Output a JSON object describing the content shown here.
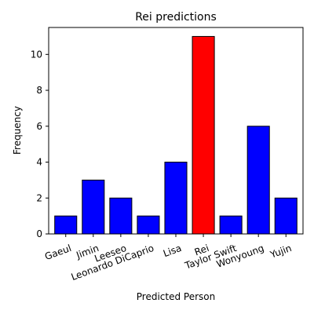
{
  "chart_data": {
    "type": "bar",
    "title": "Rei predictions",
    "xlabel": "Predicted Person",
    "ylabel": "Frequency",
    "categories": [
      "Gaeul",
      "Jimin",
      "Leeseo",
      "Leonardo DiCaprio",
      "Lisa",
      "Rei",
      "Taylor Swift",
      "Wonyoung",
      "Yujin"
    ],
    "values": [
      1,
      3,
      2,
      1,
      4,
      11,
      1,
      6,
      2
    ],
    "ylim": [
      0,
      11.5
    ],
    "yticks": [
      0,
      2,
      4,
      6,
      8,
      10
    ],
    "grid": false,
    "bar_colors": [
      "#0000ff",
      "#0000ff",
      "#0000ff",
      "#0000ff",
      "#0000ff",
      "#ff0000",
      "#0000ff",
      "#0000ff",
      "#0000ff"
    ],
    "edge_color": "#000000"
  }
}
